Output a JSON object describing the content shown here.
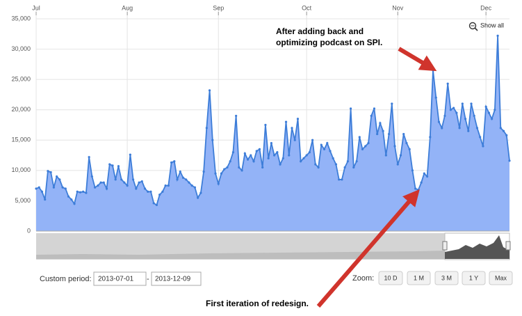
{
  "chart_data": {
    "type": "area",
    "categories": [
      "Jul",
      null,
      null,
      null,
      null,
      null,
      null,
      null,
      null,
      null,
      null,
      null,
      null,
      null,
      null,
      null,
      null,
      null,
      null,
      null,
      null,
      null,
      null,
      null,
      null,
      null,
      null,
      null,
      null,
      null,
      null,
      "Aug",
      null,
      null,
      null,
      null,
      null,
      null,
      null,
      null,
      null,
      null,
      null,
      null,
      null,
      null,
      null,
      null,
      null,
      null,
      null,
      null,
      null,
      null,
      null,
      null,
      null,
      null,
      null,
      null,
      null,
      null,
      "Sep",
      null,
      null,
      null,
      null,
      null,
      null,
      null,
      null,
      null,
      null,
      null,
      null,
      null,
      null,
      null,
      null,
      null,
      null,
      null,
      null,
      null,
      null,
      null,
      null,
      null,
      null,
      null,
      null,
      null,
      "Oct",
      null,
      null,
      null,
      null,
      null,
      null,
      null,
      null,
      null,
      null,
      null,
      null,
      null,
      null,
      null,
      null,
      null,
      null,
      null,
      null,
      null,
      null,
      null,
      null,
      null,
      null,
      null,
      null,
      null,
      null,
      "Nov",
      null,
      null,
      null,
      null,
      null,
      null,
      null,
      null,
      null,
      null,
      null,
      null,
      null,
      null,
      null,
      null,
      null,
      null,
      null,
      null,
      null,
      null,
      null,
      null,
      null,
      null,
      null,
      null,
      null,
      "Dec",
      null,
      null,
      null,
      null,
      null,
      null,
      null,
      null
    ],
    "values": [
      7000,
      7200,
      6500,
      5200,
      9900,
      9700,
      7200,
      9000,
      8500,
      7200,
      7000,
      5700,
      5200,
      4500,
      6500,
      6400,
      6500,
      6300,
      12200,
      9000,
      7200,
      7500,
      8000,
      8000,
      7000,
      11000,
      10800,
      8500,
      10700,
      8500,
      8000,
      7500,
      12600,
      8500,
      7000,
      8000,
      8200,
      7000,
      6500,
      6500,
      4600,
      4300,
      6000,
      6500,
      7500,
      7500,
      11300,
      11500,
      8500,
      9800,
      8800,
      8500,
      8000,
      7500,
      7200,
      5500,
      6300,
      9800,
      17000,
      23200,
      15000,
      9500,
      7800,
      9500,
      10200,
      10500,
      11500,
      13000,
      19000,
      10500,
      10000,
      12800,
      11800,
      12500,
      11500,
      13200,
      13500,
      10500,
      17500,
      12000,
      14500,
      12500,
      13000,
      11000,
      12000,
      18000,
      12500,
      17000,
      15000,
      18500,
      11500,
      12000,
      12500,
      13000,
      15000,
      11000,
      10500,
      14200,
      13500,
      14500,
      13200,
      12000,
      11000,
      8500,
      8500,
      10500,
      11500,
      20200,
      10500,
      11500,
      15500,
      13500,
      14000,
      14500,
      19000,
      20200,
      16000,
      17800,
      16500,
      12500,
      16000,
      21000,
      14000,
      11000,
      12500,
      16000,
      14500,
      13500,
      10000,
      7000,
      6800,
      8000,
      9500,
      9000,
      15500,
      26500,
      22000,
      18000,
      17000,
      19000,
      24300,
      20000,
      20300,
      19500,
      17000,
      21000,
      18500,
      16500,
      21000,
      19000,
      17000,
      15500,
      14000,
      20500,
      19500,
      18500,
      20000,
      32200,
      17000,
      16500,
      15800,
      11600
    ],
    "color": "#3d7dd8",
    "fill_color": "#93b3f7",
    "ylim": [
      0,
      35000
    ],
    "yticks": [
      {
        "value": 0,
        "label": "0"
      },
      {
        "value": 5000,
        "label": "5,000"
      },
      {
        "value": 10000,
        "label": "10,000"
      },
      {
        "value": 15000,
        "label": "15,000"
      },
      {
        "value": 20000,
        "label": "20,000"
      },
      {
        "value": 25000,
        "label": "25,000"
      },
      {
        "value": 30000,
        "label": "30,000"
      },
      {
        "value": 35000,
        "label": "35,000"
      }
    ],
    "grid": true,
    "show_all": "Show all",
    "annotations": [
      "After adding back and",
      "optimizing podcast on SPI.",
      "First iteration of redesign."
    ],
    "custom_period_label": "Custom period:",
    "period_from": "2013-07-01",
    "period_sep": "-",
    "period_to": "2013-12-09",
    "zoom_label": "Zoom:",
    "zoom_buttons": [
      "10 D",
      "1 M",
      "3 M",
      "1 Y",
      "Max"
    ]
  }
}
